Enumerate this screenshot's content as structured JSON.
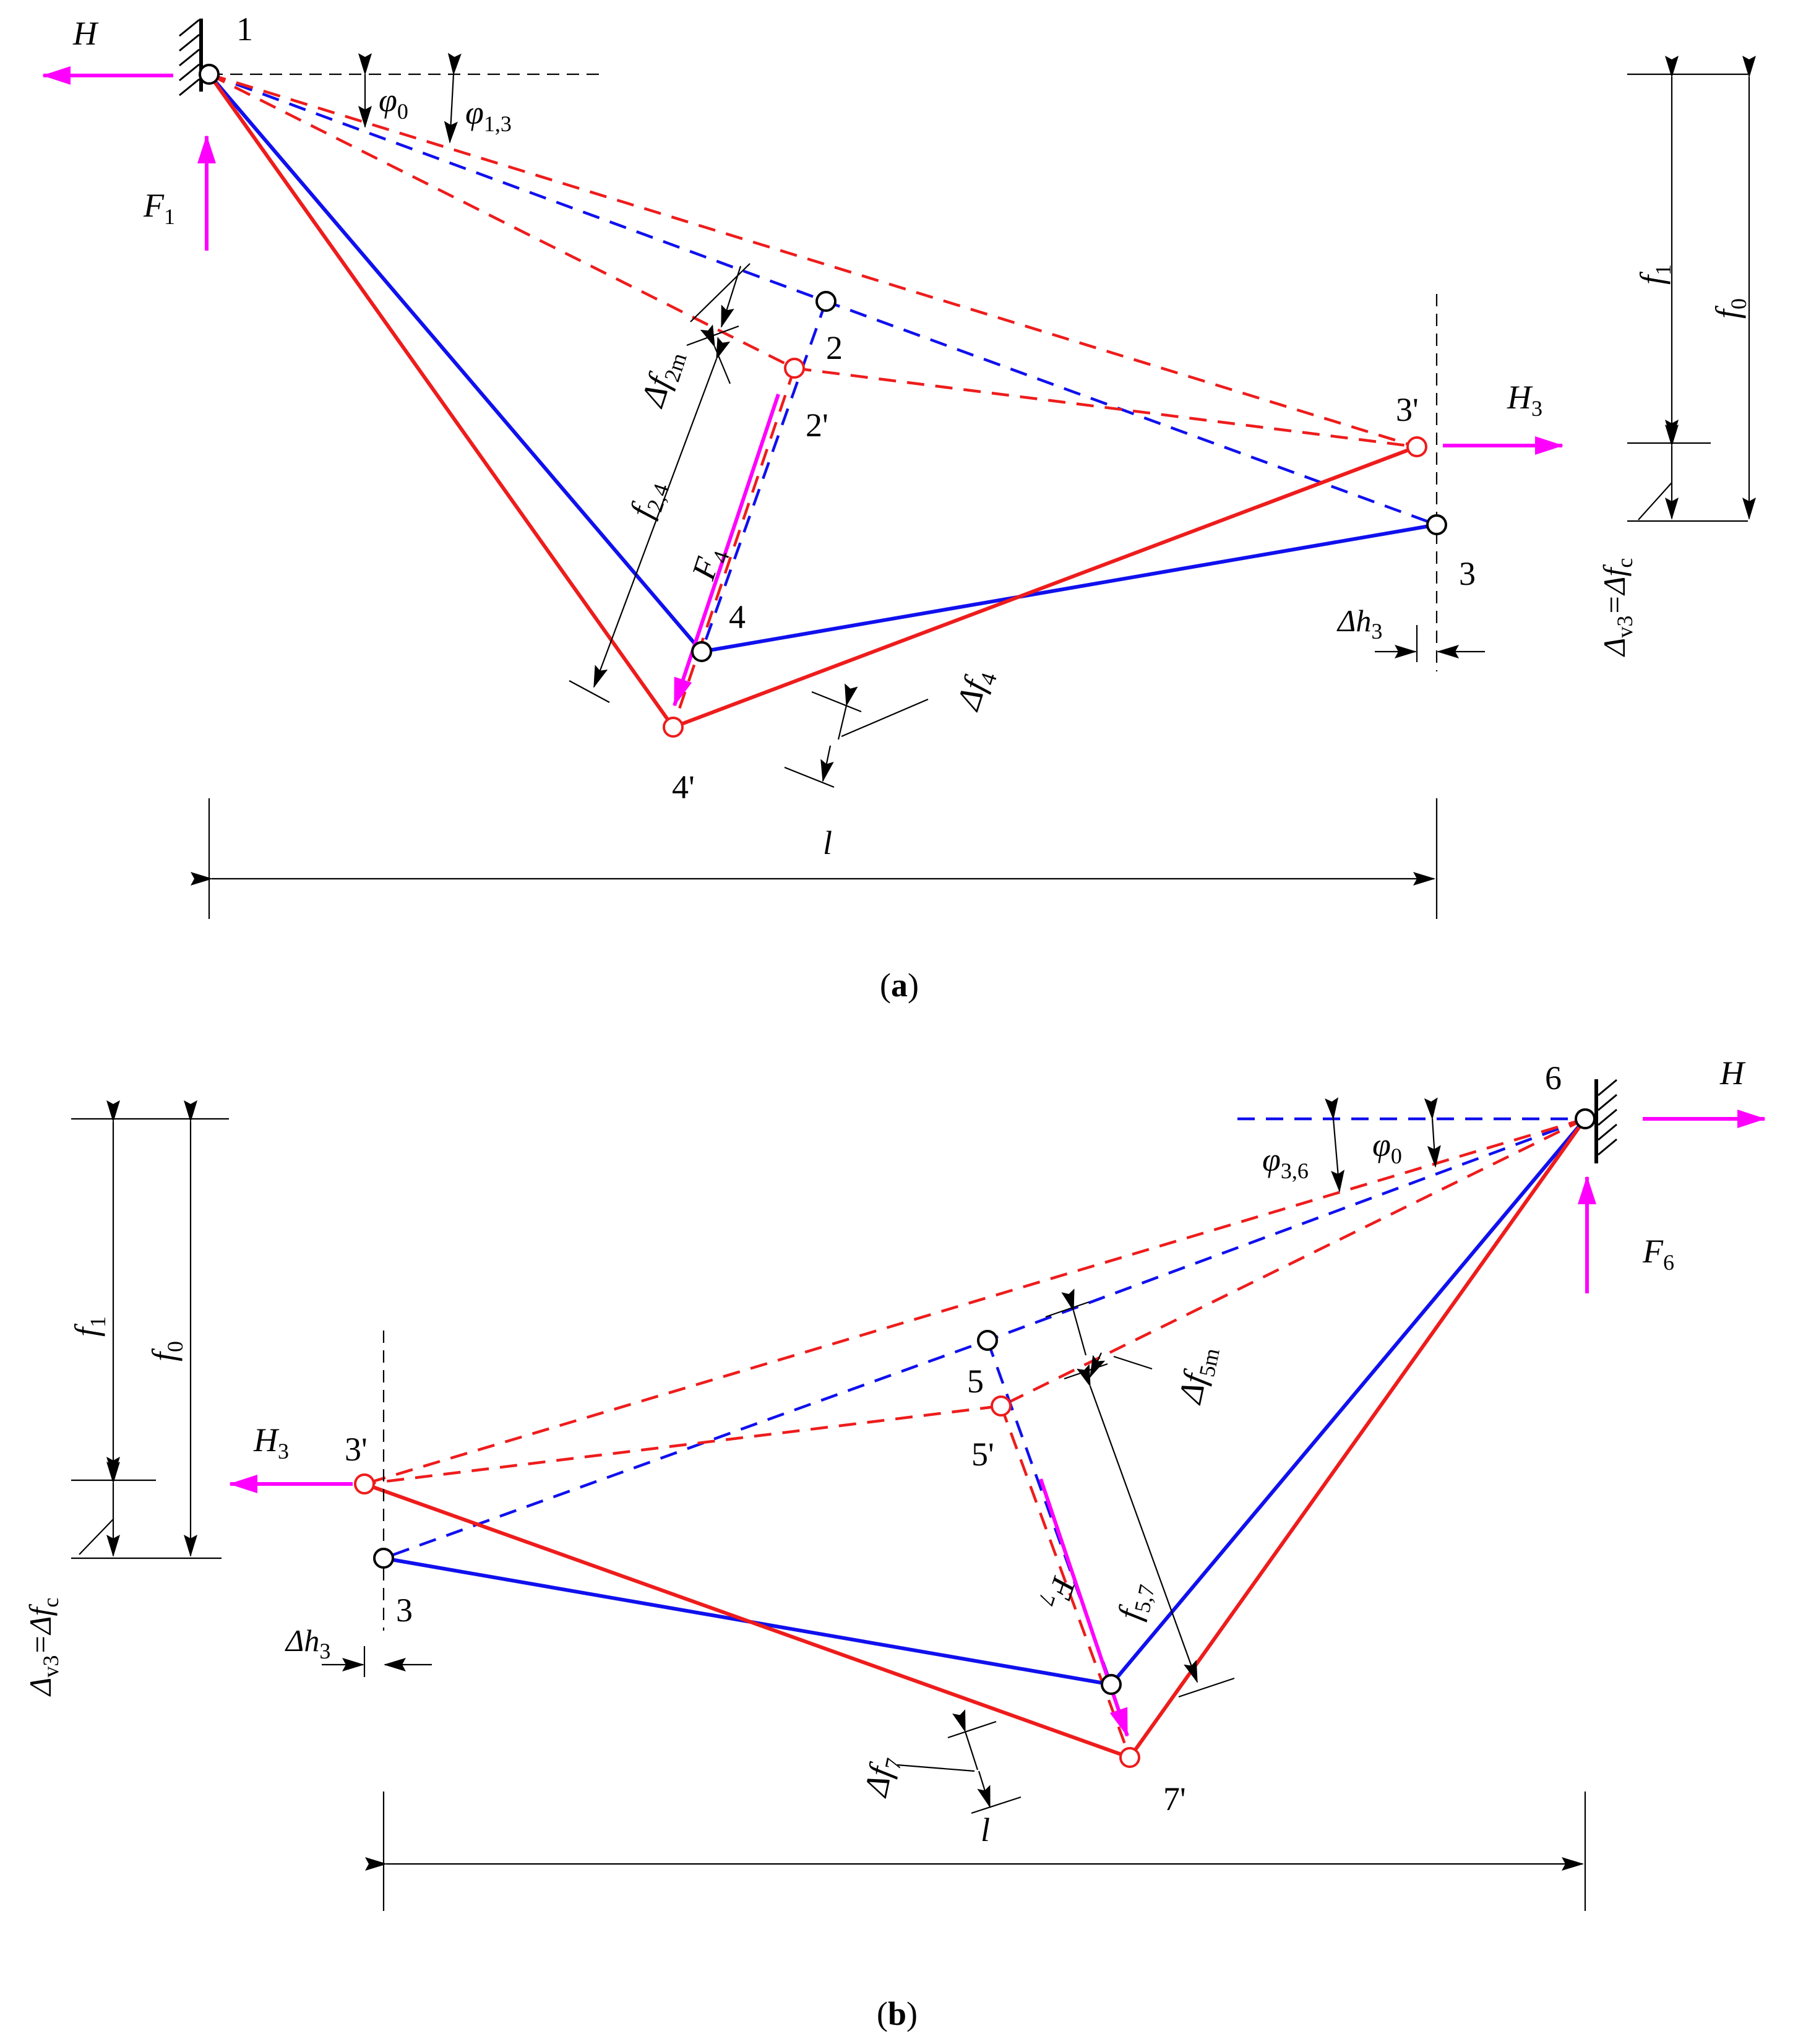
{
  "figure_a": {
    "caption_open": "(",
    "caption_letter": "a",
    "caption_close": ")",
    "node_labels": {
      "n1": "1",
      "n2": "2",
      "n2p": "2'",
      "n3": "3",
      "n3p": "3'",
      "n4": "4",
      "n4p": "4'"
    },
    "forces": {
      "H": "H",
      "H3_main": "H",
      "H3_sub": "3",
      "F1_main": "F",
      "F1_sub": "1",
      "F4_main": "F",
      "F4_sub": "4"
    },
    "angles": {
      "phi0_main": "φ",
      "phi0_sub": "0",
      "phi13_main": "φ",
      "phi13_sub": "1,3"
    },
    "dims": {
      "df2m_main": "Δf",
      "df2m_sub": "2m",
      "f24_main": "f",
      "f24_sub": "2,4",
      "df4_main": "Δf",
      "df4_sub": "4",
      "dh3_main": "Δh",
      "dh3_sub": "3",
      "l": "l",
      "f1_main": "f",
      "f1_sub": "1",
      "f0_main": "f",
      "f0_sub": "0",
      "dv3_a": "Δ",
      "dv3_b": "v3",
      "dv3_c": "=Δf",
      "dv3_d": "c"
    }
  },
  "figure_b": {
    "caption_open": "(",
    "caption_letter": "b",
    "caption_close": ")",
    "node_labels": {
      "n3": "3",
      "n3p": "3'",
      "n5": "5",
      "n5p": "5'",
      "n6": "6",
      "n7p": "7'"
    },
    "forces": {
      "H": "H",
      "H3_main": "H",
      "H3_sub": "3",
      "F6_main": "F",
      "F6_sub": "6",
      "F7_main": "F",
      "F7_sub": "7"
    },
    "angles": {
      "phi36_main": "φ",
      "phi36_sub": "3,6",
      "phi0_main": "φ",
      "phi0_sub": "0"
    },
    "dims": {
      "df5m_main": "Δf",
      "df5m_sub": "5m",
      "f57_main": "f",
      "f57_sub": "5,7",
      "df7_main": "Δf",
      "df7_sub": "7",
      "dh3_main": "Δh",
      "dh3_sub": "3",
      "l": "l",
      "f1_main": "f",
      "f1_sub": "1",
      "f0_main": "f",
      "f0_sub": "0",
      "dv3_a": "Δ",
      "dv3_b": "v3",
      "dv3_c": "=Δf",
      "dv3_d": "c"
    }
  },
  "colors": {
    "initial": "#1010ee",
    "deformed": "#ee1c1c",
    "force": "#ff00ff",
    "dimension": "#000000"
  }
}
